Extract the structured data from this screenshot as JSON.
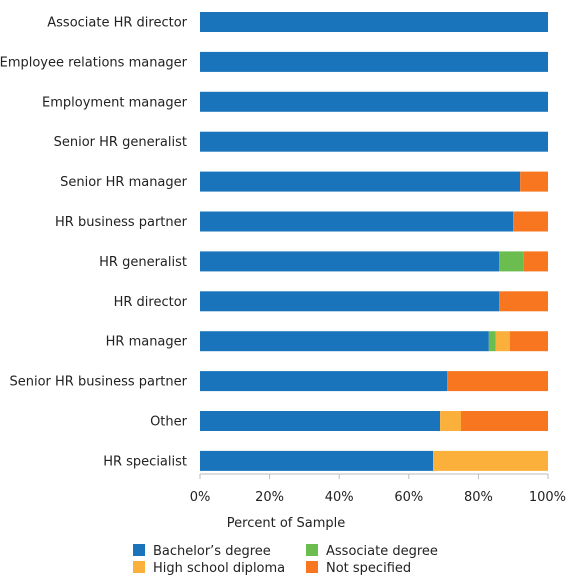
{
  "chart_data": {
    "type": "bar",
    "orientation": "horizontal",
    "stacked": true,
    "title": "",
    "xlabel": "Percent of Sample",
    "ylabel": "",
    "xlim": [
      0,
      100
    ],
    "x_ticks": [
      "0%",
      "20%",
      "40%",
      "60%",
      "80%",
      "100%"
    ],
    "grid": false,
    "legend_position": "bottom",
    "categories": [
      "Associate HR director",
      "Employee relations manager",
      "Employment manager",
      "Senior HR generalist",
      "Senior HR manager",
      "HR business partner",
      "HR generalist",
      "HR director",
      "HR manager",
      "Senior HR business partner",
      "Other",
      "HR specialist"
    ],
    "series": [
      {
        "name": "Bachelor’s degree",
        "color": "#1a74bb",
        "values": [
          100,
          100,
          100,
          100,
          92,
          90,
          86,
          86,
          83,
          71,
          69,
          67
        ]
      },
      {
        "name": "Associate degree",
        "color": "#6abd4e",
        "values": [
          0,
          0,
          0,
          0,
          0,
          0,
          7,
          0,
          2,
          0,
          0,
          0
        ]
      },
      {
        "name": "High school diploma",
        "color": "#fbb03b",
        "values": [
          0,
          0,
          0,
          0,
          0,
          0,
          0,
          0,
          4,
          0,
          6,
          33
        ]
      },
      {
        "name": "Not specified",
        "color": "#f7761f",
        "values": [
          0,
          0,
          0,
          0,
          8,
          10,
          7,
          14,
          11,
          29,
          25,
          0
        ]
      }
    ]
  }
}
